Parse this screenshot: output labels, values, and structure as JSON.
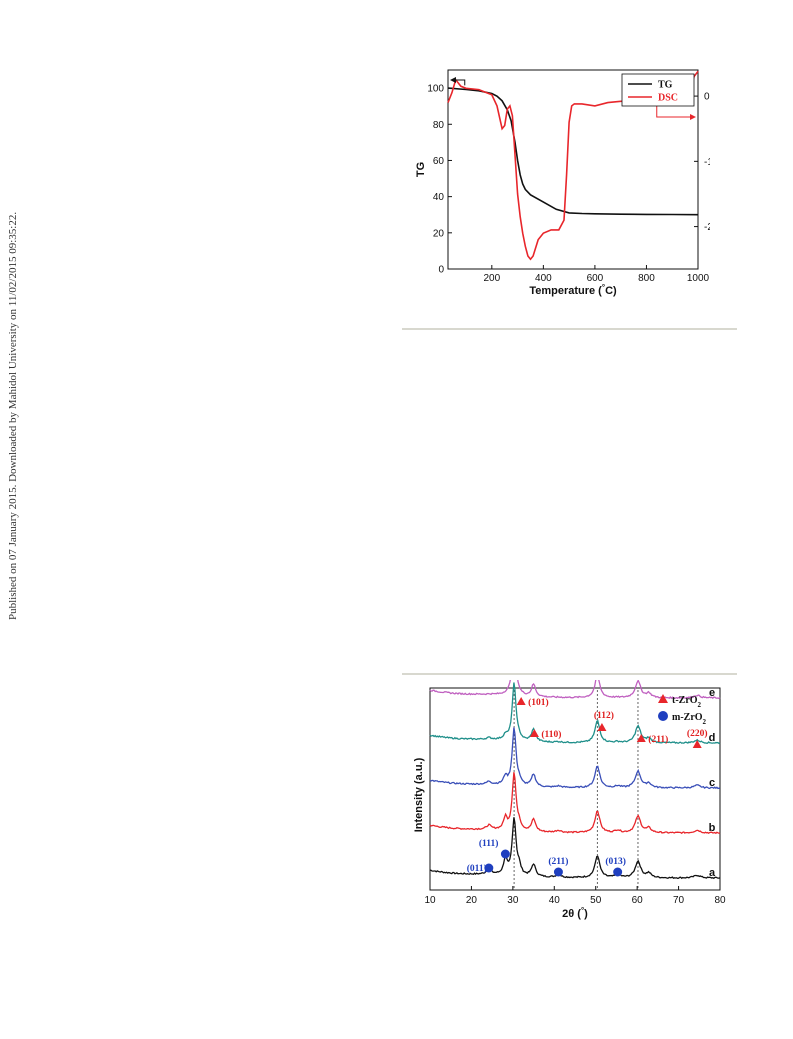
{
  "side_note": "Published on 07 January 2015. Downloaded by Mahidol University on 11/02/2015 09:35:22.",
  "chart_data": [
    {
      "type": "line",
      "xlabel": "Temperature (°C)",
      "ylabel": "TG",
      "y2label": "DSC",
      "xlim": [
        30,
        1000
      ],
      "ylim": [
        0,
        110
      ],
      "y2lim": [
        -2.65,
        0.4
      ],
      "xticks": [
        200,
        400,
        600,
        800,
        1000
      ],
      "yticks": [
        0,
        20,
        40,
        60,
        80,
        100
      ],
      "y2ticks": [
        0,
        -1,
        -2
      ],
      "legend_position": "top-right",
      "series": [
        {
          "name": "TG",
          "axis": "left",
          "color": "#111111",
          "x": [
            30,
            100,
            150,
            200,
            220,
            240,
            260,
            275,
            290,
            300,
            310,
            320,
            330,
            350,
            400,
            450,
            500,
            550,
            600,
            700,
            800,
            900,
            1000
          ],
          "y": [
            100,
            99.2,
            98.5,
            97,
            95.5,
            93,
            88,
            82,
            70,
            60,
            52,
            47,
            44,
            41,
            37,
            33,
            31,
            30.7,
            30.5,
            30.3,
            30.2,
            30.1,
            30
          ]
        },
        {
          "name": "DSC",
          "axis": "right",
          "color": "#e8262b",
          "x": [
            30,
            45,
            60,
            80,
            100,
            150,
            180,
            200,
            220,
            240,
            250,
            260,
            270,
            280,
            290,
            300,
            310,
            320,
            330,
            340,
            350,
            360,
            380,
            400,
            430,
            460,
            480,
            490,
            500,
            510,
            520,
            550,
            600,
            650,
            700,
            750,
            800,
            850,
            900,
            950,
            970,
            985,
            1000
          ],
          "y": [
            -0.1,
            0.05,
            0.25,
            0.15,
            0.12,
            0.1,
            0.05,
            0.02,
            -0.15,
            -0.5,
            -0.45,
            -0.2,
            -0.15,
            -0.3,
            -0.9,
            -1.5,
            -1.85,
            -2.1,
            -2.3,
            -2.45,
            -2.5,
            -2.45,
            -2.2,
            -2.1,
            -2.05,
            -2.05,
            -1.9,
            -1.2,
            -0.4,
            -0.15,
            -0.12,
            -0.12,
            -0.15,
            -0.1,
            -0.08,
            -0.07,
            -0.06,
            -0.04,
            -0.02,
            0.0,
            0.1,
            0.3,
            0.38
          ]
        }
      ]
    },
    {
      "type": "line",
      "xlabel": "2θ (°)",
      "ylabel": "Intensity (a.u.)",
      "xlim": [
        10,
        80
      ],
      "xticks": [
        10,
        20,
        30,
        40,
        50,
        60,
        70,
        80
      ],
      "reference_lines_x": [
        30.3,
        50.4,
        60.2
      ],
      "series": [
        {
          "name": "a",
          "color": "#111111",
          "offset": 0
        },
        {
          "name": "b",
          "color": "#e8262b",
          "offset": 1
        },
        {
          "name": "c",
          "color": "#3a4fb8",
          "offset": 2
        },
        {
          "name": "d",
          "color": "#1f8f8a",
          "offset": 3
        },
        {
          "name": "e",
          "color": "#c060c0",
          "offset": 4
        }
      ],
      "peaks": [
        {
          "x": 24.2,
          "h": 0.25,
          "w": 0.6,
          "m": true
        },
        {
          "x": 28.2,
          "h": 0.7,
          "w": 0.5,
          "m": true
        },
        {
          "x": 30.3,
          "h": 2.6,
          "w": 0.55,
          "m": false
        },
        {
          "x": 31.5,
          "h": 0.35,
          "w": 0.5,
          "m": true
        },
        {
          "x": 35.0,
          "h": 0.55,
          "w": 0.6,
          "m": false
        },
        {
          "x": 41.0,
          "h": 0.12,
          "w": 0.8,
          "m": true
        },
        {
          "x": 50.4,
          "h": 1.0,
          "w": 0.7,
          "m": false
        },
        {
          "x": 55.3,
          "h": 0.15,
          "w": 0.7,
          "m": true
        },
        {
          "x": 60.2,
          "h": 0.75,
          "w": 0.8,
          "m": false
        },
        {
          "x": 62.8,
          "h": 0.2,
          "w": 0.7,
          "m": false
        },
        {
          "x": 74.5,
          "h": 0.12,
          "w": 0.9,
          "m": false
        }
      ],
      "legend": {
        "t_label": "t-ZrO",
        "t_sub": "2",
        "m_label": "m-ZrO",
        "m_sub": "2",
        "legend_position": "top-right"
      },
      "t_labels": [
        {
          "text": "(101)",
          "x": 32.0
        },
        {
          "text": "(110)",
          "x": 35.2
        },
        {
          "text": "(112)",
          "x": 51.5
        },
        {
          "text": "(211)",
          "x": 61.0
        },
        {
          "text": "(220)",
          "x": 74.5
        }
      ],
      "m_labels": [
        {
          "text": "(011)",
          "x": 24.2
        },
        {
          "text": "(111)",
          "x": 28.2
        },
        {
          "text": "(211)",
          "x": 41.0
        },
        {
          "text": "(013)",
          "x": 55.3
        }
      ]
    }
  ]
}
